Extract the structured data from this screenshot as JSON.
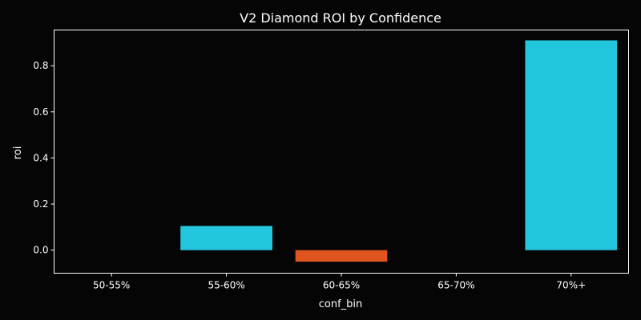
{
  "chart_data": {
    "type": "bar",
    "title": "V2 Diamond ROI by Confidence",
    "xlabel": "conf_bin",
    "ylabel": "roi",
    "categories": [
      "50-55%",
      "55-60%",
      "60-65%",
      "65-70%",
      "70%+"
    ],
    "values": [
      0,
      0.105,
      -0.05,
      0,
      0.91
    ],
    "ylim": [
      -0.1,
      0.955
    ],
    "yticks": [
      0.0,
      0.2,
      0.4,
      0.6,
      0.8
    ],
    "ytick_labels": [
      "0.0",
      "0.2",
      "0.4",
      "0.6",
      "0.8"
    ],
    "grid": false,
    "colors": {
      "positive": "#22C7DE",
      "negative": "#E0551F",
      "background": "#050505",
      "foreground": "#ffffff"
    }
  }
}
